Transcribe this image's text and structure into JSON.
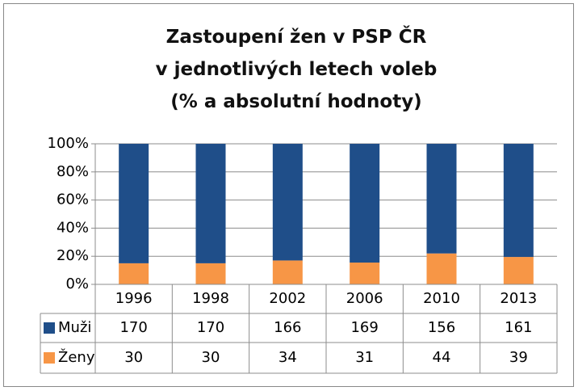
{
  "chart_data": {
    "type": "bar",
    "stacking": "percent",
    "title": "Zastoupení žen v PSP ČR\nv jednotlivých letech voleb\n(% a absolutní hodnoty)",
    "categories": [
      "1996",
      "1998",
      "2002",
      "2006",
      "2010",
      "2013"
    ],
    "series": [
      {
        "name": "Muži",
        "color": "#1f4e89",
        "values": [
          170,
          170,
          166,
          169,
          156,
          161
        ]
      },
      {
        "name": "Ženy",
        "color": "#f79646",
        "values": [
          30,
          30,
          34,
          31,
          44,
          39
        ]
      }
    ],
    "ylim": [
      0,
      100
    ],
    "yticks": [
      {
        "value": 0,
        "label": "0%"
      },
      {
        "value": 20,
        "label": "20%"
      },
      {
        "value": 40,
        "label": "40%"
      },
      {
        "value": 60,
        "label": "60%"
      },
      {
        "value": 80,
        "label": "80%"
      },
      {
        "value": 100,
        "label": "100%"
      }
    ],
    "grid": true,
    "data_table": true
  }
}
